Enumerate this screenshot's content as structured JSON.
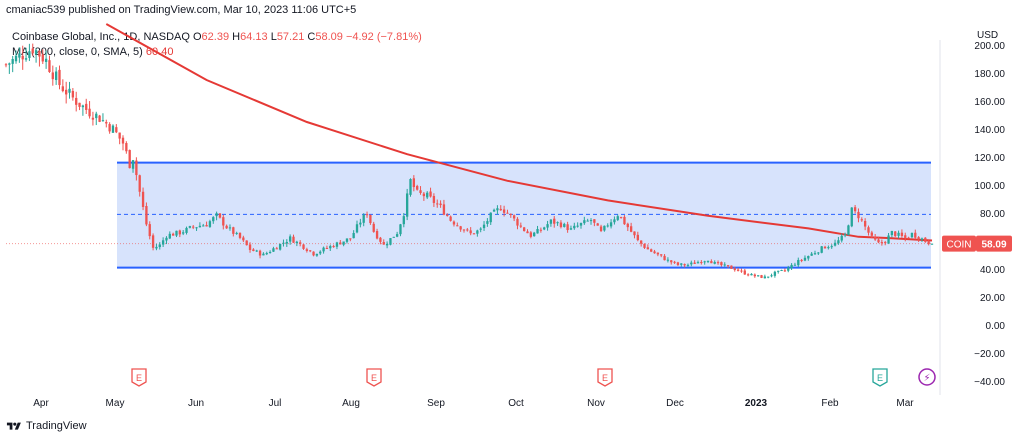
{
  "header": {
    "publisher_line": "cmaniac539 published on TradingView.com, Mar 10, 2023 11:06 UTC+5"
  },
  "ticker": {
    "name": "Coinbase Global, Inc., 1D, NASDAQ",
    "open_label": "O",
    "open": "62.39",
    "high_label": "H",
    "high": "64.13",
    "low_label": "L",
    "low": "57.21",
    "close_label": "C",
    "close": "58.09",
    "change": "−4.92 (−7.81%)"
  },
  "ma": {
    "label": "MA (200, close, 0, SMA, 5)",
    "value": "60.40"
  },
  "currency": "USD",
  "price_badge": {
    "symbol": "COIN",
    "price": "58.09"
  },
  "footer": {
    "brand": "TradingView"
  },
  "colors": {
    "up": "#26a69a",
    "down": "#ef5350",
    "ma": "#e53935",
    "range_fill": "#c9d9fb",
    "range_line": "#2962ff",
    "badge": "#ef5350"
  },
  "chart_data": {
    "type": "candlestick",
    "title": "Coinbase Global, Inc., 1D, NASDAQ",
    "ylim": [
      -40,
      200
    ],
    "y_ticks": [
      -40,
      -20,
      0,
      20,
      40,
      60,
      80,
      100,
      120,
      140,
      160,
      180,
      200
    ],
    "y_tick_labels": [
      "−40.00",
      "−20.00",
      "0.00",
      "20.00",
      "40.00",
      "60.00",
      "80.00",
      "100.00",
      "120.00",
      "140.00",
      "160.00",
      "180.00",
      "200.00"
    ],
    "x_tick_labels": [
      "Apr",
      "May",
      "Jun",
      "Jul",
      "Aug",
      "Sep",
      "Oct",
      "Nov",
      "Dec",
      "2023",
      "Feb",
      "Mar"
    ],
    "range_box": {
      "top": 116,
      "middle": 79,
      "bottom": 41
    },
    "events": [
      {
        "label": "E",
        "month": "May",
        "kind": "earnings"
      },
      {
        "label": "E",
        "month": "Aug",
        "kind": "earnings"
      },
      {
        "label": "E",
        "month": "Nov",
        "kind": "earnings"
      },
      {
        "label": "E",
        "month": "Feb",
        "kind": "earnings-upcoming"
      },
      {
        "label": "⚡",
        "month": "Mar",
        "kind": "split"
      }
    ],
    "close_path": [
      [
        0,
        186
      ],
      [
        4,
        192
      ],
      [
        8,
        198
      ],
      [
        12,
        189
      ],
      [
        16,
        172
      ],
      [
        20,
        162
      ],
      [
        24,
        154
      ],
      [
        28,
        148
      ],
      [
        32,
        140
      ],
      [
        35,
        130
      ],
      [
        37,
        115
      ],
      [
        38,
        120
      ],
      [
        40,
        95
      ],
      [
        42,
        72
      ],
      [
        44,
        55
      ],
      [
        46,
        57
      ],
      [
        48,
        64
      ],
      [
        52,
        66
      ],
      [
        56,
        70
      ],
      [
        60,
        72
      ],
      [
        63,
        78
      ],
      [
        66,
        70
      ],
      [
        70,
        62
      ],
      [
        73,
        54
      ],
      [
        77,
        50
      ],
      [
        81,
        56
      ],
      [
        85,
        62
      ],
      [
        89,
        56
      ],
      [
        92,
        51
      ],
      [
        96,
        55
      ],
      [
        99,
        58
      ],
      [
        103,
        62
      ],
      [
        106,
        74
      ],
      [
        108,
        80
      ],
      [
        110,
        67
      ],
      [
        113,
        57
      ],
      [
        117,
        66
      ],
      [
        119,
        80
      ],
      [
        121,
        103
      ],
      [
        123,
        94
      ],
      [
        126,
        92
      ],
      [
        128,
        88
      ],
      [
        130,
        84
      ],
      [
        133,
        75
      ],
      [
        136,
        70
      ],
      [
        139,
        65
      ],
      [
        142,
        68
      ],
      [
        145,
        78
      ],
      [
        148,
        84
      ],
      [
        151,
        78
      ],
      [
        154,
        70
      ],
      [
        157,
        64
      ],
      [
        160,
        68
      ],
      [
        163,
        74
      ],
      [
        166,
        72
      ],
      [
        169,
        68
      ],
      [
        172,
        72
      ],
      [
        175,
        75
      ],
      [
        178,
        66
      ],
      [
        180,
        72
      ],
      [
        183,
        79
      ],
      [
        186,
        70
      ],
      [
        189,
        60
      ],
      [
        192,
        54
      ],
      [
        195,
        50
      ],
      [
        198,
        46
      ],
      [
        201,
        43
      ],
      [
        204,
        43
      ],
      [
        207,
        45
      ],
      [
        210,
        47
      ],
      [
        212,
        44
      ],
      [
        215,
        42
      ],
      [
        218,
        40
      ],
      [
        221,
        37
      ],
      [
        224,
        35
      ],
      [
        227,
        34
      ],
      [
        230,
        37
      ],
      [
        233,
        39
      ],
      [
        236,
        44
      ],
      [
        239,
        48
      ],
      [
        242,
        52
      ],
      [
        245,
        56
      ],
      [
        248,
        58
      ],
      [
        251,
        64
      ],
      [
        253,
        82
      ],
      [
        255,
        78
      ],
      [
        257,
        70
      ],
      [
        259,
        62
      ],
      [
        261,
        58
      ],
      [
        263,
        60
      ],
      [
        265,
        66
      ],
      [
        267,
        64
      ],
      [
        269,
        62
      ],
      [
        271,
        65
      ],
      [
        273,
        63
      ],
      [
        275,
        60
      ],
      [
        277,
        58
      ]
    ],
    "ma_line": [
      [
        30,
        215
      ],
      [
        60,
        175
      ],
      [
        90,
        145
      ],
      [
        120,
        122
      ],
      [
        150,
        103
      ],
      [
        180,
        89
      ],
      [
        210,
        78
      ],
      [
        240,
        69
      ],
      [
        255,
        63
      ],
      [
        265,
        62
      ],
      [
        277,
        60.4
      ]
    ],
    "last_price": 58.09
  }
}
